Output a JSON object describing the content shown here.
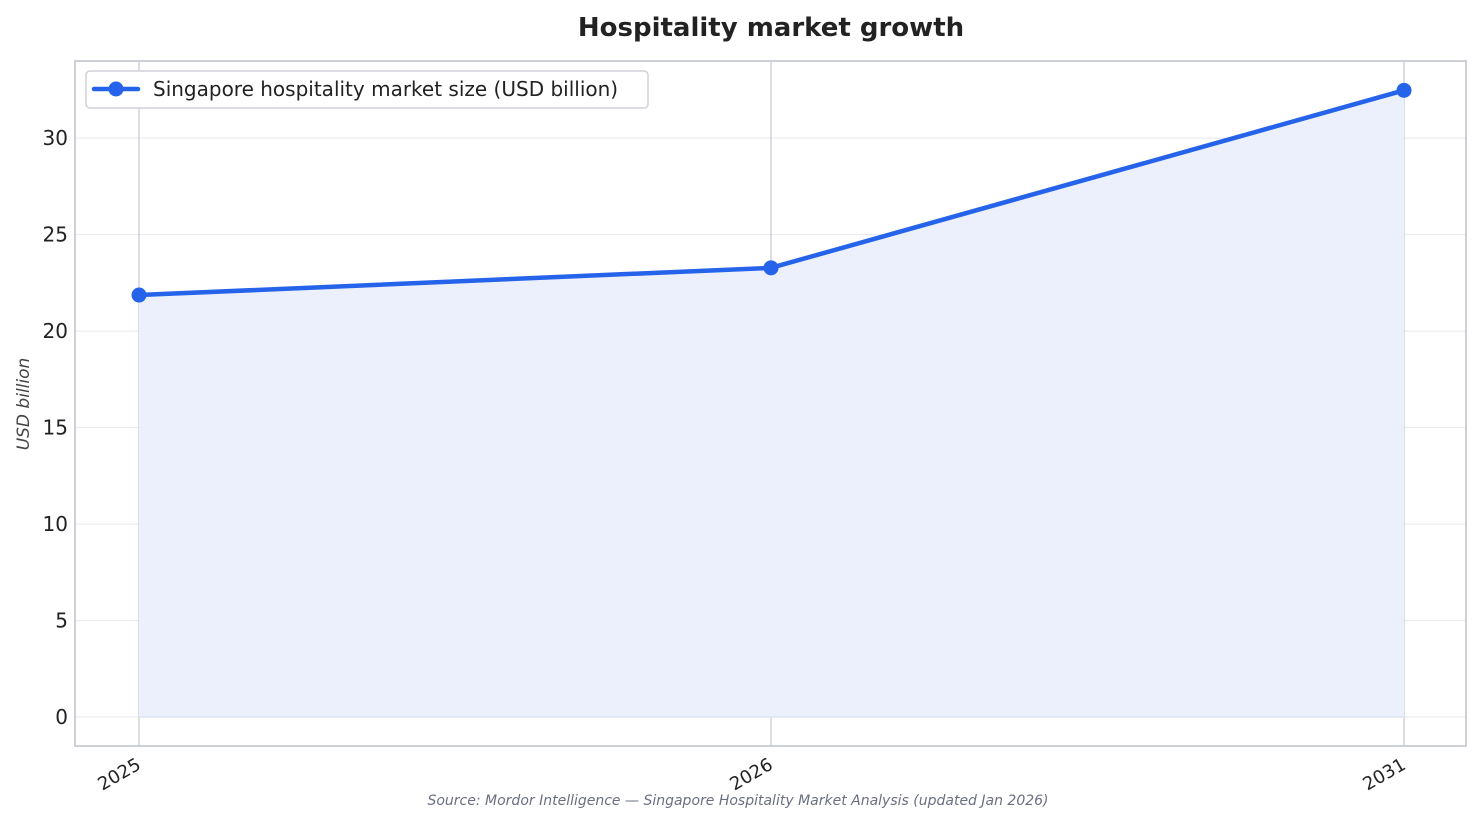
{
  "chart_data": {
    "type": "area",
    "title": "Hospitality market growth",
    "xlabel": "",
    "ylabel": "USD billion",
    "categories": [
      "2025",
      "2026",
      "2031"
    ],
    "series": [
      {
        "name": "Singapore hospitality market size (USD billion)",
        "values": [
          21.87,
          23.28,
          32.48
        ],
        "color": "#2563eb",
        "fill_color": "#ebf0fc"
      }
    ],
    "ylim": [
      -1.5,
      34
    ],
    "yticks": [
      0,
      5,
      10,
      15,
      20,
      25,
      30
    ],
    "ytick_labels": [
      "0",
      "5",
      "10",
      "15",
      "20",
      "25",
      "30"
    ],
    "grid": true,
    "legend_position": "top-left",
    "source": "Source: Mordor Intelligence — Singapore Hospitality Market Analysis (updated Jan 2026)"
  }
}
